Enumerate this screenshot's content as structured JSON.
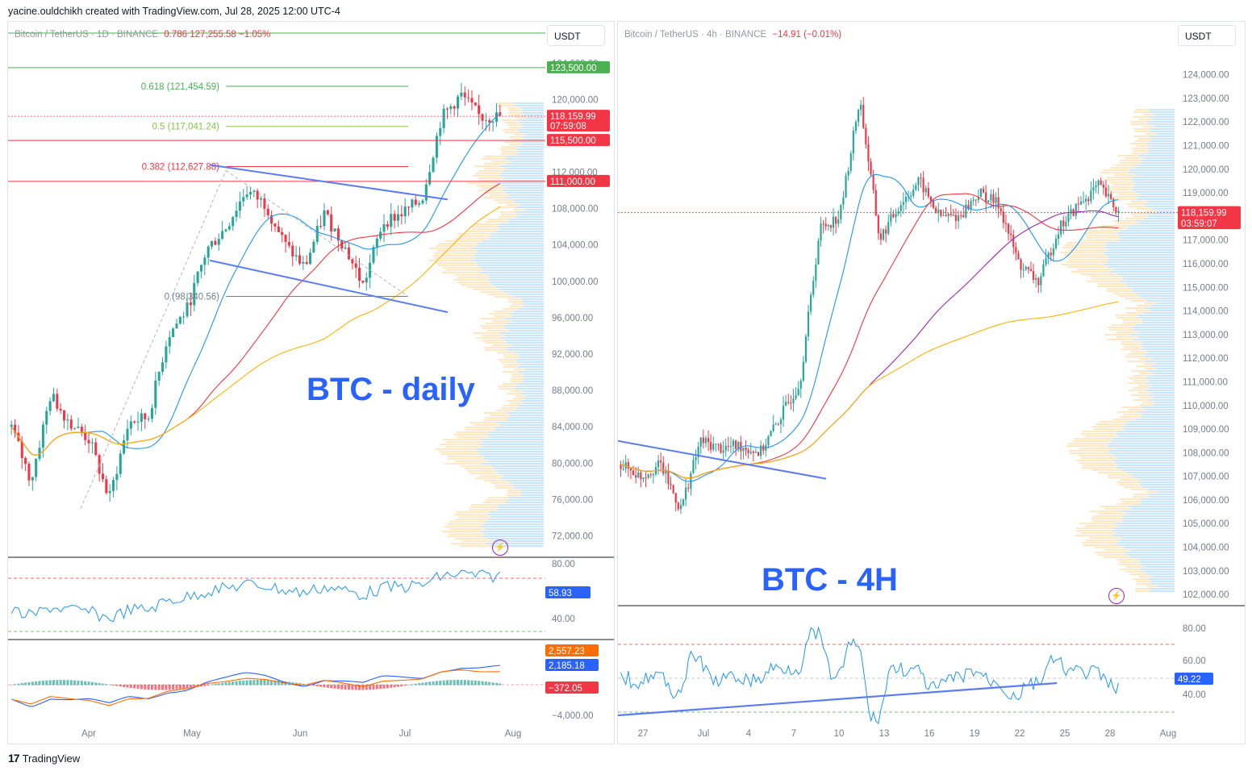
{
  "top_line": "yacine.ouldchikh created with TradingView.com, Jul 28, 2025 12:00 UTC-4",
  "footer": {
    "logo_glyph": "17",
    "brand": "TradingView"
  },
  "colors": {
    "up": "#26a69a",
    "down": "#f23645",
    "blue_ma": "#2196f3",
    "red_ma": "#f23645",
    "orange_ma": "#ffb300",
    "purple_ma": "#9c27b0",
    "trend": "#5b7cf5",
    "title": "#2962ff"
  },
  "chart_data": [
    {
      "type": "candlestick",
      "header": "Bitcoin / TetherUS · 1D · BINANCE",
      "header_overlap_text": "0.786 127,255.58 −1.05%",
      "currency_button": "USDT",
      "title": "BTC - daily",
      "x_ticks": [
        "Apr",
        "May",
        "Jun",
        "Jul",
        "Aug"
      ],
      "y_ticks": [
        "124,000.00",
        "120,000.00",
        "112,000.00",
        "108,000.00",
        "104,000.00",
        "100,000.00",
        "96,000.00",
        "92,000.00",
        "88,000.00",
        "84,000.00",
        "80,000.00",
        "76,000.00",
        "72,000.00"
      ],
      "y_range": [
        70000,
        125000
      ],
      "price_labels": [
        {
          "text": "123,500.00",
          "value": 123500,
          "color": "#4caf50"
        },
        {
          "text": "118,159.99",
          "value": 118159.99,
          "color": "#f23645"
        },
        {
          "text": "07:59:08",
          "value": 117100,
          "color": "#f23645"
        },
        {
          "text": "115,500.00",
          "value": 115500,
          "color": "#f23645"
        },
        {
          "text": "111,000.00",
          "value": 111000,
          "color": "#f23645"
        }
      ],
      "fib_levels": [
        {
          "label": "0.618 (121,454.59)",
          "value": 121454.59,
          "color": "#4caf50"
        },
        {
          "label": "0.5 (117,041.24)",
          "value": 117041.24,
          "color": "#8bc34a"
        },
        {
          "label": "0.382 (112,627.88)",
          "value": 112627.88,
          "color": "#f23645"
        },
        {
          "label": "0 (98,340.56)",
          "value": 98340.56,
          "color": "#787b86"
        }
      ],
      "horizontal_levels": [
        123500,
        115500,
        111000
      ],
      "ohlc_path": [
        [
          "Mar",
          84000
        ],
        [
          "Mar",
          78000
        ],
        [
          "Mar",
          87500
        ],
        [
          "Mar",
          84500
        ],
        [
          "Apr",
          82500
        ],
        [
          "Apr",
          76000
        ],
        [
          "Apr",
          84500
        ],
        [
          "Apr",
          85000
        ],
        [
          "Apr",
          94000
        ],
        [
          "May",
          97000
        ],
        [
          "May",
          103500
        ],
        [
          "May",
          106000
        ],
        [
          "May",
          110000
        ],
        [
          "May",
          108500
        ],
        [
          "Jun",
          104000
        ],
        [
          "Jun",
          101500
        ],
        [
          "Jun",
          107500
        ],
        [
          "Jun",
          104000
        ],
        [
          "Jun",
          99500
        ],
        [
          "Jun",
          106500
        ],
        [
          "Jul",
          107500
        ],
        [
          "Jul",
          109000
        ],
        [
          "Jul",
          118000
        ],
        [
          "Jul",
          120500
        ],
        [
          "Jul",
          118000
        ],
        [
          "Jul",
          118160
        ]
      ],
      "rsi": {
        "value_label": "58.93",
        "levels": [
          "80.00",
          "40.00"
        ]
      },
      "macd": {
        "labels": [
          {
            "text": "2,557.23",
            "color": "#ff6d00"
          },
          {
            "text": "2,185.18",
            "color": "#2962ff"
          },
          {
            "text": "−372.05",
            "color": "#f23645"
          }
        ],
        "tick": "−4,000.00"
      }
    },
    {
      "type": "candlestick",
      "header": "Bitcoin / TetherUS · 4h · BINANCE",
      "change": "−14.91 (−0.01%)",
      "currency_button": "USDT",
      "title": "BTC - 4H",
      "x_ticks": [
        "27",
        "Jul",
        "4",
        "7",
        "10",
        "13",
        "16",
        "19",
        "22",
        "25",
        "28",
        "Aug"
      ],
      "y_ticks": [
        "124,000.00",
        "123,000.00",
        "122,000.00",
        "121,000.00",
        "120,000.00",
        "119,000.00",
        "117,000.00",
        "116,000.00",
        "115,000.00",
        "114,000.00",
        "113,000.00",
        "112,000.00",
        "111,000.00",
        "110,000.00",
        "109,000.00",
        "108,000.00",
        "107,000.00",
        "106,000.00",
        "105,000.00",
        "104,000.00",
        "103,000.00",
        "102,000.00"
      ],
      "y_range": [
        101800,
        124600
      ],
      "price_labels": [
        {
          "text": "118,159.99",
          "value": 118159.99,
          "color": "#f23645"
        },
        {
          "text": "03:59:07",
          "value": 117700,
          "color": "#f23645"
        }
      ],
      "ohlc_path": [
        [
          "Jun 26",
          107500
        ],
        [
          "Jun 27",
          107000
        ],
        [
          "Jun 28",
          107500
        ],
        [
          "Jun 30",
          105600
        ],
        [
          "Jul 2",
          108500
        ],
        [
          "Jul 4",
          108200
        ],
        [
          "Jul 6",
          108300
        ],
        [
          "Jul 8",
          108000
        ],
        [
          "Jul 9",
          109500
        ],
        [
          "Jul 10",
          111000
        ],
        [
          "Jul 11",
          117500
        ],
        [
          "Jul 12",
          118000
        ],
        [
          "Jul 14",
          123000
        ],
        [
          "Jul 15",
          117000
        ],
        [
          "Jul 16",
          118500
        ],
        [
          "Jul 17",
          119500
        ],
        [
          "Jul 18",
          118000
        ],
        [
          "Jul 20",
          118000
        ],
        [
          "Jul 22",
          119000
        ],
        [
          "Jul 23",
          118500
        ],
        [
          "Jul 24",
          116000
        ],
        [
          "Jul 25",
          115200
        ],
        [
          "Jul 26",
          117500
        ],
        [
          "Jul 27",
          118500
        ],
        [
          "Jul 28",
          119300
        ],
        [
          "Jul 28",
          118160
        ]
      ],
      "rsi": {
        "value_label": "49.22",
        "levels": [
          "80.00",
          "60.00",
          "40.00"
        ]
      }
    }
  ]
}
